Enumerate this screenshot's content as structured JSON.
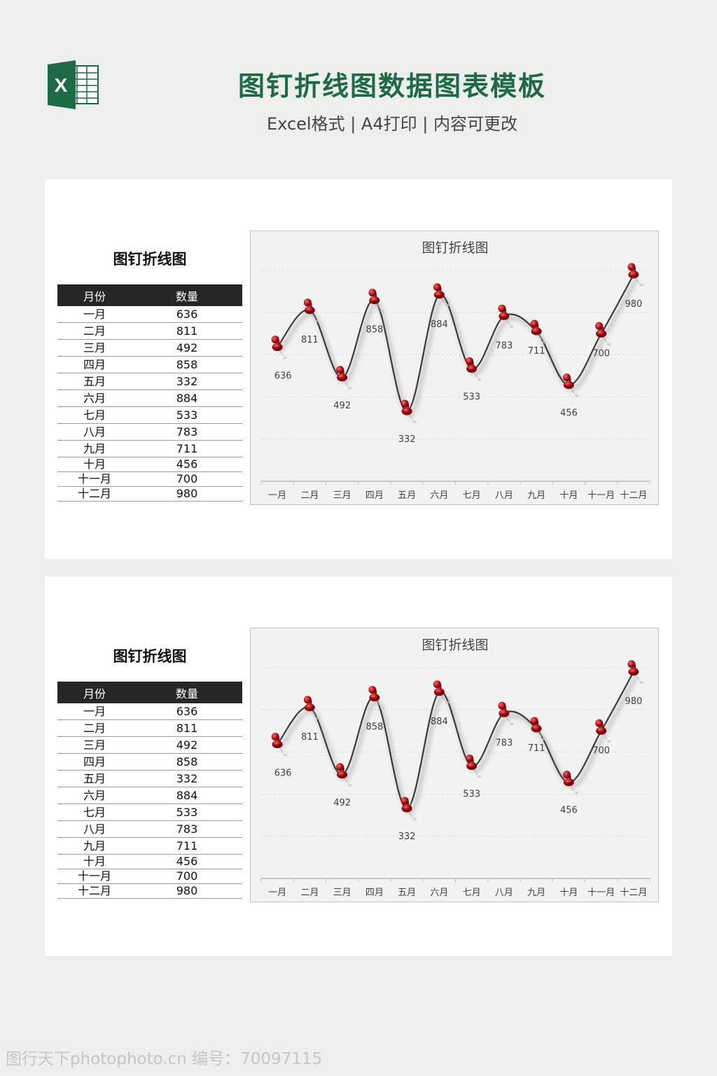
{
  "header": {
    "title": "图钉折线图数据图表模板",
    "subtitle": "Excel格式 | A4打印 | 内容可更改",
    "logo_icon": "excel-logo-icon",
    "logo_letter": "X",
    "brand_color": "#1d6b44"
  },
  "panels": [
    {
      "table_title": "图钉折线图",
      "columns": [
        "月份",
        "数量"
      ],
      "rows": [
        {
          "month": "一月",
          "qty": "636"
        },
        {
          "month": "二月",
          "qty": "811"
        },
        {
          "month": "三月",
          "qty": "492"
        },
        {
          "month": "四月",
          "qty": "858"
        },
        {
          "month": "五月",
          "qty": "332"
        },
        {
          "month": "六月",
          "qty": "884"
        },
        {
          "month": "七月",
          "qty": "533"
        },
        {
          "month": "八月",
          "qty": "783"
        },
        {
          "month": "九月",
          "qty": "711"
        },
        {
          "month": "十月",
          "qty": "456"
        },
        {
          "month": "十一月",
          "qty": "700"
        },
        {
          "month": "十二月",
          "qty": "980"
        }
      ]
    },
    {
      "table_title": "图钉折线图",
      "columns": [
        "月份",
        "数量"
      ],
      "rows": [
        {
          "month": "一月",
          "qty": "636"
        },
        {
          "month": "二月",
          "qty": "811"
        },
        {
          "month": "三月",
          "qty": "492"
        },
        {
          "month": "四月",
          "qty": "858"
        },
        {
          "month": "五月",
          "qty": "332"
        },
        {
          "month": "六月",
          "qty": "884"
        },
        {
          "month": "七月",
          "qty": "533"
        },
        {
          "month": "八月",
          "qty": "783"
        },
        {
          "month": "九月",
          "qty": "711"
        },
        {
          "month": "十月",
          "qty": "456"
        },
        {
          "month": "十一月",
          "qty": "700"
        },
        {
          "month": "十二月",
          "qty": "980"
        }
      ]
    }
  ],
  "chart_data": [
    {
      "type": "line",
      "title": "图钉折线图",
      "categories": [
        "一月",
        "二月",
        "三月",
        "四月",
        "五月",
        "六月",
        "七月",
        "八月",
        "九月",
        "十月",
        "十一月",
        "十二月"
      ],
      "values": [
        636,
        811,
        492,
        858,
        332,
        884,
        533,
        783,
        711,
        456,
        700,
        980
      ],
      "data_labels": [
        "636",
        "811",
        "492",
        "858",
        "332",
        "884",
        "533",
        "783",
        "711",
        "456",
        "700",
        "980"
      ],
      "ylim": [
        0,
        1000
      ],
      "grid": true,
      "smooth": true,
      "marker": "pushpin",
      "line_color": "#3a3a3a",
      "marker_color": "#c0141c"
    },
    {
      "type": "line",
      "title": "图钉折线图",
      "categories": [
        "一月",
        "二月",
        "三月",
        "四月",
        "五月",
        "六月",
        "七月",
        "八月",
        "九月",
        "十月",
        "十一月",
        "十二月"
      ],
      "values": [
        636,
        811,
        492,
        858,
        332,
        884,
        533,
        783,
        711,
        456,
        700,
        980
      ],
      "data_labels": [
        "636",
        "811",
        "492",
        "858",
        "332",
        "884",
        "533",
        "783",
        "711",
        "456",
        "700",
        "980"
      ],
      "ylim": [
        0,
        1000
      ],
      "grid": true,
      "smooth": true,
      "marker": "pushpin",
      "line_color": "#3a3a3a",
      "marker_color": "#c0141c"
    }
  ],
  "watermark": "图行天下photophoto.cn 编号：70097115"
}
